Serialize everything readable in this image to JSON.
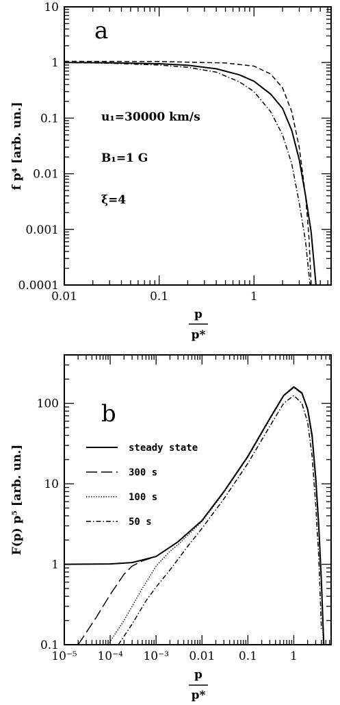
{
  "chart_data": [
    {
      "type": "line",
      "panel_label": "a",
      "xscale": "log",
      "yscale": "log",
      "xlim": [
        0.01,
        6.5
      ],
      "ylim": [
        0.0001,
        10
      ],
      "xticks": [
        "0.01",
        "0.1",
        "1"
      ],
      "yticks": [
        "0.0001",
        "0.001",
        "0.01",
        "0.1",
        "1",
        "10"
      ],
      "xlabel_num": "p",
      "xlabel_den": "p*",
      "ylabel": "f p⁴ [arb. un.]",
      "annotations": [
        "u₁=30000 km/s",
        "B₁=1 G",
        "ξ=4"
      ],
      "series": [
        {
          "style": "solid",
          "x": [
            0.01,
            0.03,
            0.1,
            0.2,
            0.4,
            0.7,
            1.0,
            1.5,
            2.0,
            2.5,
            3.0,
            3.5,
            4.0,
            4.5
          ],
          "y": [
            1.0,
            0.99,
            0.95,
            0.89,
            0.77,
            0.6,
            0.46,
            0.27,
            0.15,
            0.06,
            0.018,
            0.004,
            0.0009,
            0.0001
          ]
        },
        {
          "style": "dashed",
          "x": [
            0.01,
            0.1,
            0.5,
            1.0,
            1.5,
            2.0,
            2.5,
            3.0,
            3.5,
            3.8,
            4.0
          ],
          "y": [
            1.05,
            1.04,
            0.98,
            0.86,
            0.62,
            0.35,
            0.13,
            0.03,
            0.004,
            0.0007,
            0.0001
          ]
        },
        {
          "style": "dashdot",
          "x": [
            0.01,
            0.03,
            0.1,
            0.2,
            0.4,
            0.7,
            1.0,
            1.5,
            2.0,
            2.5,
            3.0,
            3.5,
            3.9
          ],
          "y": [
            1.0,
            0.97,
            0.9,
            0.82,
            0.67,
            0.45,
            0.3,
            0.13,
            0.05,
            0.015,
            0.003,
            0.0006,
            0.0001
          ]
        }
      ]
    },
    {
      "type": "line",
      "panel_label": "b",
      "xscale": "log",
      "yscale": "log",
      "xlim": [
        1e-05,
        6.5
      ],
      "ylim": [
        0.1,
        400
      ],
      "xticks": [
        "10⁻⁵",
        "10⁻⁴",
        "10⁻³",
        "0.01",
        "0.1",
        "1"
      ],
      "yticks": [
        "0.1",
        "1",
        "10",
        "100"
      ],
      "xlabel_num": "p",
      "xlabel_den": "p*",
      "ylabel": "F(p) p⁵ [arb. un.]",
      "legend_placement": "left",
      "series": [
        {
          "name": "steady state",
          "style": "solid",
          "x": [
            1e-05,
            0.0001,
            0.0003,
            0.001,
            0.003,
            0.01,
            0.03,
            0.1,
            0.3,
            0.6,
            1.0,
            1.5,
            2.0,
            2.5,
            3.0,
            3.5,
            4.0,
            4.5
          ],
          "y": [
            1.0,
            1.01,
            1.05,
            1.25,
            1.9,
            3.5,
            8,
            22,
            65,
            125,
            160,
            135,
            85,
            40,
            12,
            3,
            0.6,
            0.1
          ]
        },
        {
          "name": "300 s",
          "style": "dashed",
          "x": [
            2e-05,
            5e-05,
            0.0001,
            0.0002,
            0.0003,
            0.0005,
            0.001,
            0.003,
            0.01,
            0.03,
            0.1,
            0.3,
            0.6,
            1.0,
            1.5,
            2.0,
            2.5,
            3.0,
            3.5,
            4.0,
            4.5
          ],
          "y": [
            0.1,
            0.22,
            0.42,
            0.75,
            0.95,
            1.1,
            1.25,
            1.9,
            3.5,
            8,
            22,
            65,
            125,
            158,
            133,
            83,
            38,
            11,
            2.8,
            0.55,
            0.1
          ]
        },
        {
          "name": "100 s",
          "style": "dotted",
          "x": [
            9e-05,
            0.0002,
            0.0005,
            0.001,
            0.002,
            0.003,
            0.01,
            0.03,
            0.1,
            0.3,
            0.6,
            1.0,
            1.5,
            2.0,
            2.5,
            3.0,
            3.5,
            4.0,
            4.4
          ],
          "y": [
            0.1,
            0.2,
            0.5,
            0.95,
            1.45,
            1.75,
            3.4,
            7.8,
            21.5,
            63,
            123,
            157,
            132,
            82,
            37,
            10.5,
            2.6,
            0.5,
            0.1
          ]
        },
        {
          "name": "50 s",
          "style": "dashdot",
          "x": [
            0.00015,
            0.0003,
            0.0006,
            0.001,
            0.002,
            0.003,
            0.005,
            0.01,
            0.03,
            0.1,
            0.3,
            0.6,
            1.0,
            1.5,
            2.0,
            2.5,
            3.0,
            3.5,
            4.0
          ],
          "y": [
            0.1,
            0.18,
            0.35,
            0.52,
            0.85,
            1.15,
            1.7,
            2.8,
            6.5,
            18,
            52,
            100,
            125,
            100,
            58,
            22,
            5.5,
            1.2,
            0.15
          ]
        }
      ]
    }
  ]
}
